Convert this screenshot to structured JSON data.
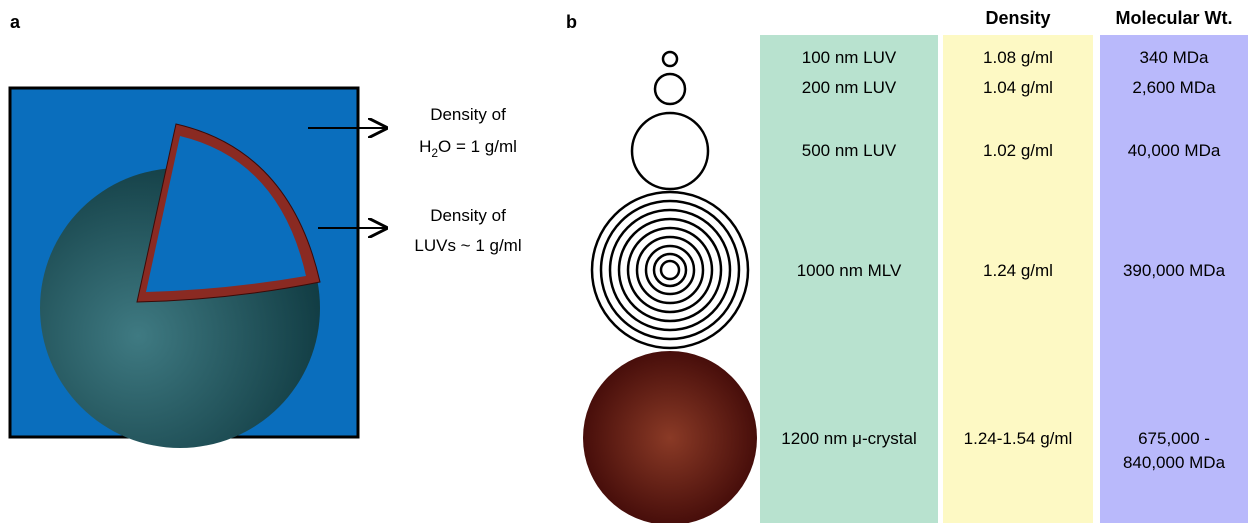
{
  "panel_a": {
    "label": "a",
    "annotations": [
      {
        "line1": "Density of",
        "line2_parts": [
          "H",
          "2",
          "O = 1 g/ml"
        ]
      },
      {
        "line1": "Density of",
        "line2_parts": [
          "LUVs ~ 1 g/ml"
        ]
      }
    ]
  },
  "panel_b": {
    "label": "b",
    "headers": {
      "density": "Density",
      "molecular_weight": "Molecular Wt."
    },
    "rows": [
      {
        "name": "100 nm LUV",
        "density": "1.08 g/ml",
        "molecular_weight": [
          "340 MDa"
        ]
      },
      {
        "name": "200 nm LUV",
        "density": "1.04 g/ml",
        "molecular_weight": [
          "2,600 MDa"
        ]
      },
      {
        "name": "500 nm LUV",
        "density": "1.02 g/ml",
        "molecular_weight": [
          "40,000 MDa"
        ]
      },
      {
        "name": "1000 nm MLV",
        "density": "1.24 g/ml",
        "molecular_weight": [
          "390,000 MDa"
        ]
      },
      {
        "name": "1200 nm μ-crystal",
        "density": "1.24-1.54 g/ml",
        "molecular_weight": [
          "675,000 -",
          "840,000 MDa"
        ]
      }
    ]
  }
}
